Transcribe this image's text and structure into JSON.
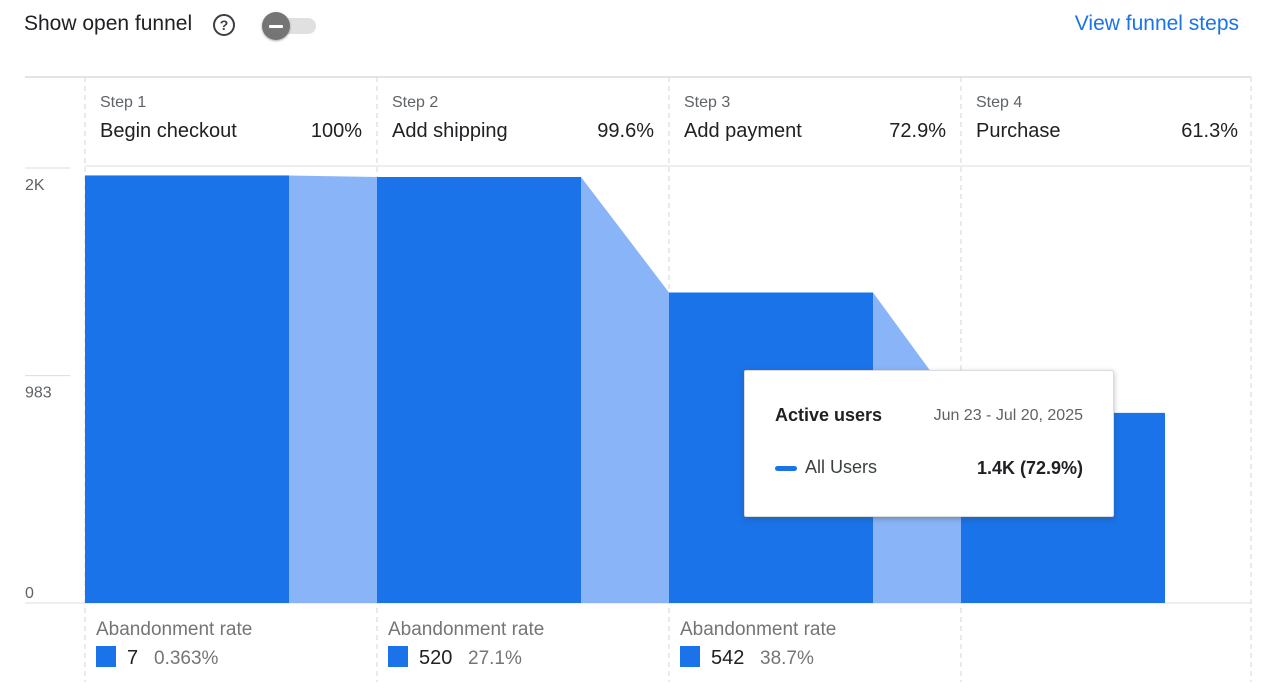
{
  "header": {
    "toggle_label": "Show open funnel",
    "toggle_state": "off",
    "view_link": "View funnel steps"
  },
  "colors": {
    "bar": "#1a73e8",
    "dropoff": "#8ab4f8",
    "grid": "#dadce0"
  },
  "chart_data": {
    "type": "bar",
    "title": "",
    "y_ticks": [
      {
        "label": "2K",
        "value": 1918
      },
      {
        "label": "983",
        "value": 983
      },
      {
        "label": "0",
        "value": 0
      }
    ],
    "ylim": [
      0,
      2000
    ],
    "grid": true,
    "steps": [
      {
        "num": "Step 1",
        "name": "Begin checkout",
        "pct": "100%",
        "value": 1925
      },
      {
        "num": "Step 2",
        "name": "Add shipping",
        "pct": "99.6%",
        "value": 1918
      },
      {
        "num": "Step 3",
        "name": "Add payment",
        "pct": "72.9%",
        "value": 1398
      },
      {
        "num": "Step 4",
        "name": "Purchase",
        "pct": "61.3%",
        "value": 856
      }
    ],
    "abandonment": [
      {
        "label": "Abandonment rate",
        "count": "7",
        "rate": "0.363%"
      },
      {
        "label": "Abandonment rate",
        "count": "520",
        "rate": "27.1%"
      },
      {
        "label": "Abandonment rate",
        "count": "542",
        "rate": "38.7%"
      }
    ]
  },
  "tooltip": {
    "title": "Active users",
    "date_range": "Jun 23 - Jul 20, 2025",
    "series_name": "All Users",
    "value": "1.4K (72.9%)"
  }
}
